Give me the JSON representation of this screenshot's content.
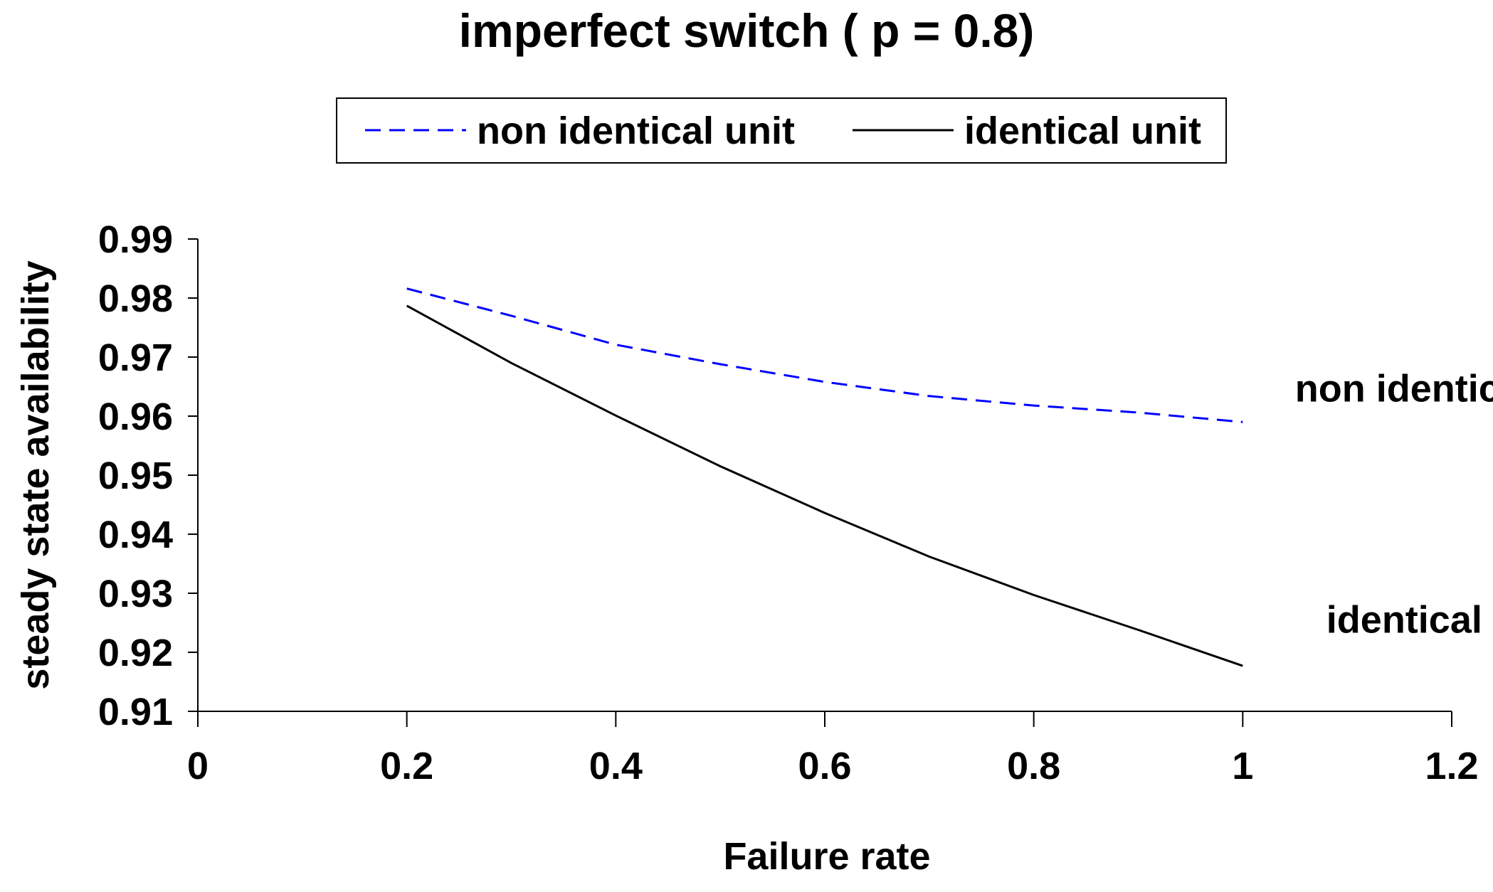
{
  "chart_data": {
    "type": "line",
    "title": "imperfect switch ( p = 0.8)",
    "xlabel": "Failure rate",
    "ylabel": "steady state availability",
    "xlim": [
      0,
      1.2
    ],
    "ylim": [
      0.91,
      0.99
    ],
    "xticks": [
      0,
      0.2,
      0.4,
      0.6,
      0.8,
      1,
      1.2
    ],
    "xtick_labels": [
      "0",
      "0.2",
      "0.4",
      "0.6",
      "0.8",
      "1",
      "1.2"
    ],
    "yticks": [
      0.91,
      0.92,
      0.93,
      0.94,
      0.95,
      0.96,
      0.97,
      0.98,
      0.99
    ],
    "ytick_labels": [
      "0.91",
      "0.92",
      "0.93",
      "0.94",
      "0.95",
      "0.96",
      "0.97",
      "0.98",
      "0.99"
    ],
    "grid": false,
    "legend_position": "top",
    "series": [
      {
        "name": "non identical unit",
        "color": "#0000ff",
        "style": "dashed",
        "x": [
          0.2,
          0.3,
          0.4,
          0.5,
          0.6,
          0.7,
          0.8,
          0.9,
          1.0
        ],
        "y": [
          0.9816,
          0.977,
          0.9721,
          0.9688,
          0.9658,
          0.9634,
          0.9618,
          0.9606,
          0.959
        ]
      },
      {
        "name": "identical unit",
        "color": "#000000",
        "style": "solid",
        "x": [
          0.2,
          0.3,
          0.4,
          0.5,
          0.6,
          0.7,
          0.8,
          0.9,
          1.0
        ],
        "y": [
          0.9787,
          0.969,
          0.9601,
          0.9515,
          0.9436,
          0.9362,
          0.9297,
          0.9238,
          0.9177
        ]
      }
    ],
    "annotations": [
      {
        "text": "non identical",
        "x": 1.05,
        "y": 0.9625
      },
      {
        "text": "identical",
        "x": 1.08,
        "y": 0.9233
      }
    ]
  }
}
